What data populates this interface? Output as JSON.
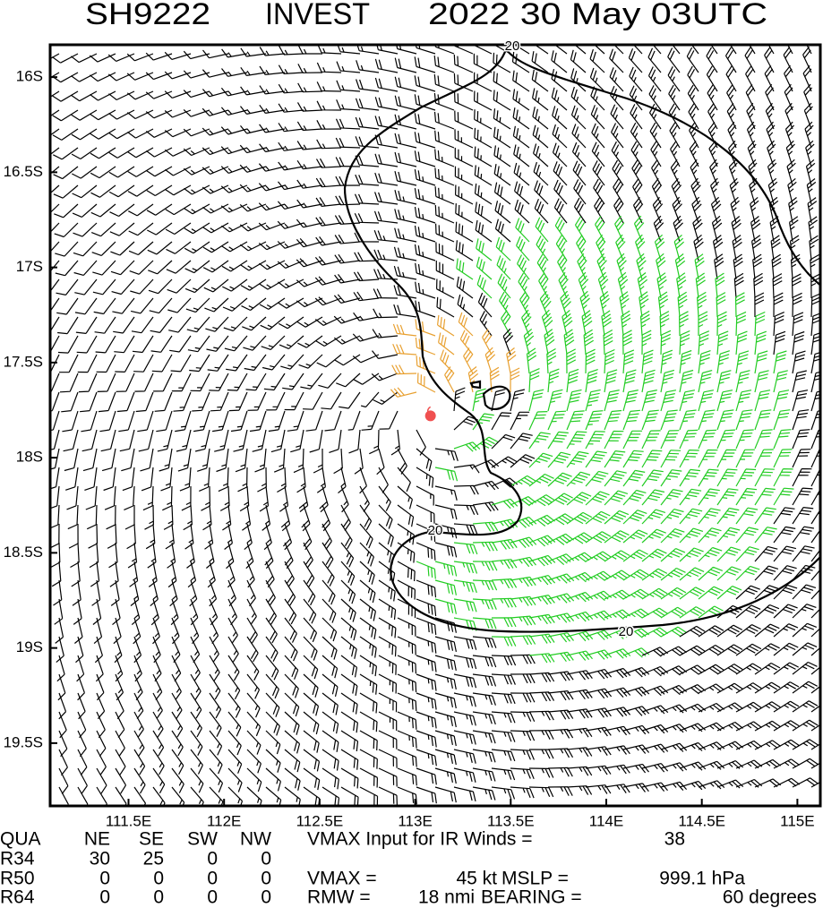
{
  "header": {
    "storm_id": "SH9222",
    "name": "INVEST",
    "time": "2022 30 May 03UTC"
  },
  "map": {
    "lon_range": [
      111.09,
      115.12
    ],
    "lat_range": [
      -15.83,
      -19.83
    ],
    "lon_ticks": [
      {
        "value": 111.5,
        "label": "111.5E"
      },
      {
        "value": 112,
        "label": "112E"
      },
      {
        "value": 112.5,
        "label": "112.5E"
      },
      {
        "value": 113,
        "label": "113E"
      },
      {
        "value": 113.5,
        "label": "113.5E"
      },
      {
        "value": 114,
        "label": "114E"
      },
      {
        "value": 114.5,
        "label": "114.5E"
      },
      {
        "value": 115,
        "label": "115E"
      }
    ],
    "lat_ticks": [
      {
        "value": -16,
        "label": "16S"
      },
      {
        "value": -16.5,
        "label": "16.5S"
      },
      {
        "value": -17,
        "label": "17S"
      },
      {
        "value": -17.5,
        "label": "17.5S"
      },
      {
        "value": -18,
        "label": "18S"
      },
      {
        "value": -18.5,
        "label": "18.5S"
      },
      {
        "value": -19,
        "label": "19S"
      },
      {
        "value": -19.5,
        "label": "19.5S"
      }
    ],
    "center": {
      "lon": 113.08,
      "lat": -17.78
    },
    "contour_labels": [
      "20",
      "20",
      "20"
    ]
  },
  "table": {
    "header": [
      "QUA",
      "NE",
      "SE",
      "SW",
      "NW"
    ],
    "rows": [
      [
        "R34",
        "30",
        "25",
        "0",
        "0"
      ],
      [
        "R50",
        "0",
        "0",
        "0",
        "0"
      ],
      [
        "R64",
        "0",
        "0",
        "0",
        "0"
      ]
    ]
  },
  "info": {
    "vmax_input_label": "VMAX Input for IR Winds =",
    "vmax_input": "38",
    "vmax_label": "VMAX =",
    "vmax": "45 kt",
    "mslp_label": "MSLP =",
    "mslp": "999.1 hPa",
    "rmw_label": "RMW =",
    "rmw": "18 nmi",
    "bearing_label": "BEARING =",
    "bearing": "60 degrees"
  }
}
